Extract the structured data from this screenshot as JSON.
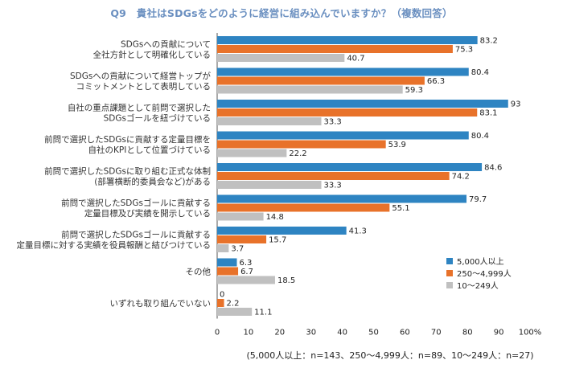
{
  "title": "Q9　貴社はSDGsをどのように経営に組み込んでいますか？（複数回答）",
  "note": "(5,000人以上：n=143、250～4,999人：n=89、10～249人：n=27)",
  "colors": {
    "s1": "#2e84c2",
    "s2": "#e8722a",
    "s3": "#c0c0c0",
    "axis": "#555555",
    "title": "#6a8fc0"
  },
  "chart_data": {
    "type": "bar",
    "orientation": "horizontal",
    "title": "Q9　貴社はSDGsをどのように経営に組み込んでいますか？（複数回答）",
    "xlim": [
      0,
      100
    ],
    "x_ticks": [
      "0",
      "10",
      "20",
      "30",
      "40",
      "50",
      "60",
      "70",
      "80",
      "90",
      "100%"
    ],
    "legend_position": "bottom-right",
    "categories": [
      [
        "SDGsへの貢献について",
        "全社方針として明確化している"
      ],
      [
        "SDGsへの貢献について経営トップが",
        "コミットメントとして表明している"
      ],
      [
        "自社の重点課題として前問で選択した",
        "SDGsゴールを紐づけている"
      ],
      [
        "前問で選択したSDGsに貢献する定量目標を",
        "自社のKPIとして位置づけている"
      ],
      [
        "前問で選択したSDGsに取り組む正式な体制",
        "(部署横断的委員会など)がある"
      ],
      [
        "前問で選択したSDGsゴールに貢献する",
        "定量目標及び実績を開示している"
      ],
      [
        "前問で選択したSDGsゴールに貢献する",
        "定量目標に対する実績を役員報酬と結びつけている"
      ],
      [
        "その他"
      ],
      [
        "いずれも取り組んでいない"
      ]
    ],
    "series": [
      {
        "name": "5,000人以上",
        "values": [
          83.2,
          80.4,
          93,
          80.4,
          84.6,
          79.7,
          41.3,
          6.3,
          0
        ]
      },
      {
        "name": "250～4,999人",
        "values": [
          75.3,
          66.3,
          83.1,
          53.9,
          74.2,
          55.1,
          15.7,
          6.7,
          2.2
        ]
      },
      {
        "name": "10～249人",
        "values": [
          40.7,
          59.3,
          33.3,
          22.2,
          33.3,
          14.8,
          3.7,
          18.5,
          11.1
        ]
      }
    ]
  }
}
